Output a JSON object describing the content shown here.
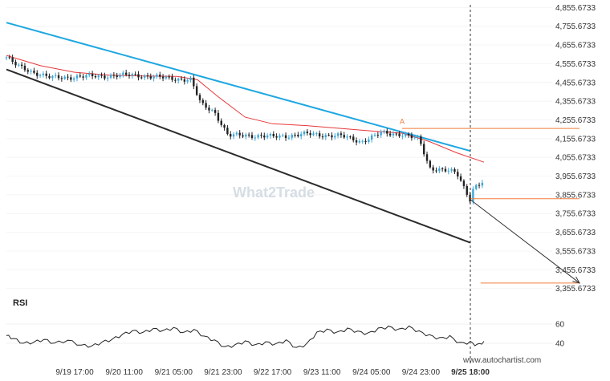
{
  "chart_data": {
    "type": "candlestick",
    "watermark": "What2Trade",
    "source": "www.autochartist.com",
    "x_tick_labels": [
      "9/19 17:00",
      "9/20 11:00",
      "9/21 05:00",
      "9/21 23:00",
      "9/22 17:00",
      "9/23 11:00",
      "9/24 05:00",
      "9/24 23:00",
      "9/25 18:00"
    ],
    "y_tick_labels": [
      "4,855.6733",
      "4,755.6733",
      "4,655.6733",
      "4,555.6733",
      "4,455.6733",
      "4,355.6733",
      "4,255.6733",
      "4,155.6733",
      "4,055.6733",
      "3,955.6733",
      "3,855.6733",
      "3,755.6733",
      "3,655.6733",
      "3,555.6733",
      "3,455.6733",
      "3,355.6733"
    ],
    "ylim": [
      3320,
      4870
    ],
    "time_range": [
      0,
      160
    ],
    "current_time": 136,
    "price_path": [
      [
        0,
        4590
      ],
      [
        3,
        4545
      ],
      [
        8,
        4510
      ],
      [
        13,
        4480
      ],
      [
        20,
        4485
      ],
      [
        28,
        4490
      ],
      [
        38,
        4495
      ],
      [
        46,
        4480
      ],
      [
        54,
        4470
      ],
      [
        57,
        4340
      ],
      [
        61,
        4300
      ],
      [
        65,
        4170
      ],
      [
        70,
        4175
      ],
      [
        78,
        4165
      ],
      [
        88,
        4180
      ],
      [
        98,
        4170
      ],
      [
        104,
        4140
      ],
      [
        110,
        4185
      ],
      [
        116,
        4180
      ],
      [
        121,
        4150
      ],
      [
        124,
        4000
      ],
      [
        128,
        3990
      ],
      [
        132,
        3970
      ],
      [
        136,
        3830
      ],
      [
        137,
        3900
      ],
      [
        140,
        3925
      ]
    ],
    "moving_average": [
      [
        0,
        4600
      ],
      [
        10,
        4545
      ],
      [
        20,
        4510
      ],
      [
        30,
        4495
      ],
      [
        40,
        4490
      ],
      [
        50,
        4488
      ],
      [
        56,
        4470
      ],
      [
        62,
        4380
      ],
      [
        70,
        4270
      ],
      [
        78,
        4235
      ],
      [
        88,
        4225
      ],
      [
        98,
        4210
      ],
      [
        108,
        4195
      ],
      [
        116,
        4185
      ],
      [
        124,
        4140
      ],
      [
        132,
        4080
      ],
      [
        140,
        4030
      ]
    ],
    "resistance_line": {
      "start": [
        0,
        4775
      ],
      "end": [
        136,
        4090
      ]
    },
    "support_line": {
      "start": [
        0,
        4525
      ],
      "end": [
        136,
        3600
      ]
    },
    "levels": [
      {
        "price": 4210,
        "from": 116,
        "to": 168
      },
      {
        "price": 3835,
        "from": 136,
        "to": 168
      },
      {
        "price": 3385,
        "from": 139,
        "to": 168
      }
    ],
    "marker": {
      "time": 116,
      "price": 4225,
      "symbol": "A"
    },
    "projection": {
      "start": [
        136,
        3830
      ],
      "end": [
        168,
        3385
      ]
    },
    "rsi": {
      "label": "RSI",
      "tick_labels": [
        "60",
        "40"
      ],
      "ylim": [
        30,
        70
      ],
      "values": [
        [
          0,
          48
        ],
        [
          2,
          45
        ],
        [
          5,
          40
        ],
        [
          8,
          41
        ],
        [
          11,
          44
        ],
        [
          14,
          40
        ],
        [
          18,
          43
        ],
        [
          22,
          38
        ],
        [
          25,
          37
        ],
        [
          28,
          41
        ],
        [
          31,
          44
        ],
        [
          34,
          49
        ],
        [
          37,
          53
        ],
        [
          40,
          51
        ],
        [
          43,
          55
        ],
        [
          46,
          53
        ],
        [
          49,
          56
        ],
        [
          52,
          51
        ],
        [
          55,
          54
        ],
        [
          58,
          47
        ],
        [
          61,
          43
        ],
        [
          64,
          36
        ],
        [
          67,
          38
        ],
        [
          70,
          42
        ],
        [
          73,
          38
        ],
        [
          76,
          41
        ],
        [
          79,
          39
        ],
        [
          82,
          43
        ],
        [
          85,
          35
        ],
        [
          88,
          39
        ],
        [
          91,
          51
        ],
        [
          94,
          54
        ],
        [
          97,
          51
        ],
        [
          100,
          55
        ],
        [
          103,
          52
        ],
        [
          106,
          50
        ],
        [
          109,
          55
        ],
        [
          112,
          57
        ],
        [
          115,
          54
        ],
        [
          118,
          57
        ],
        [
          121,
          52
        ],
        [
          124,
          48
        ],
        [
          127,
          45
        ],
        [
          130,
          47
        ],
        [
          133,
          40
        ],
        [
          136,
          41
        ],
        [
          138,
          38
        ],
        [
          140,
          42
        ]
      ]
    }
  }
}
